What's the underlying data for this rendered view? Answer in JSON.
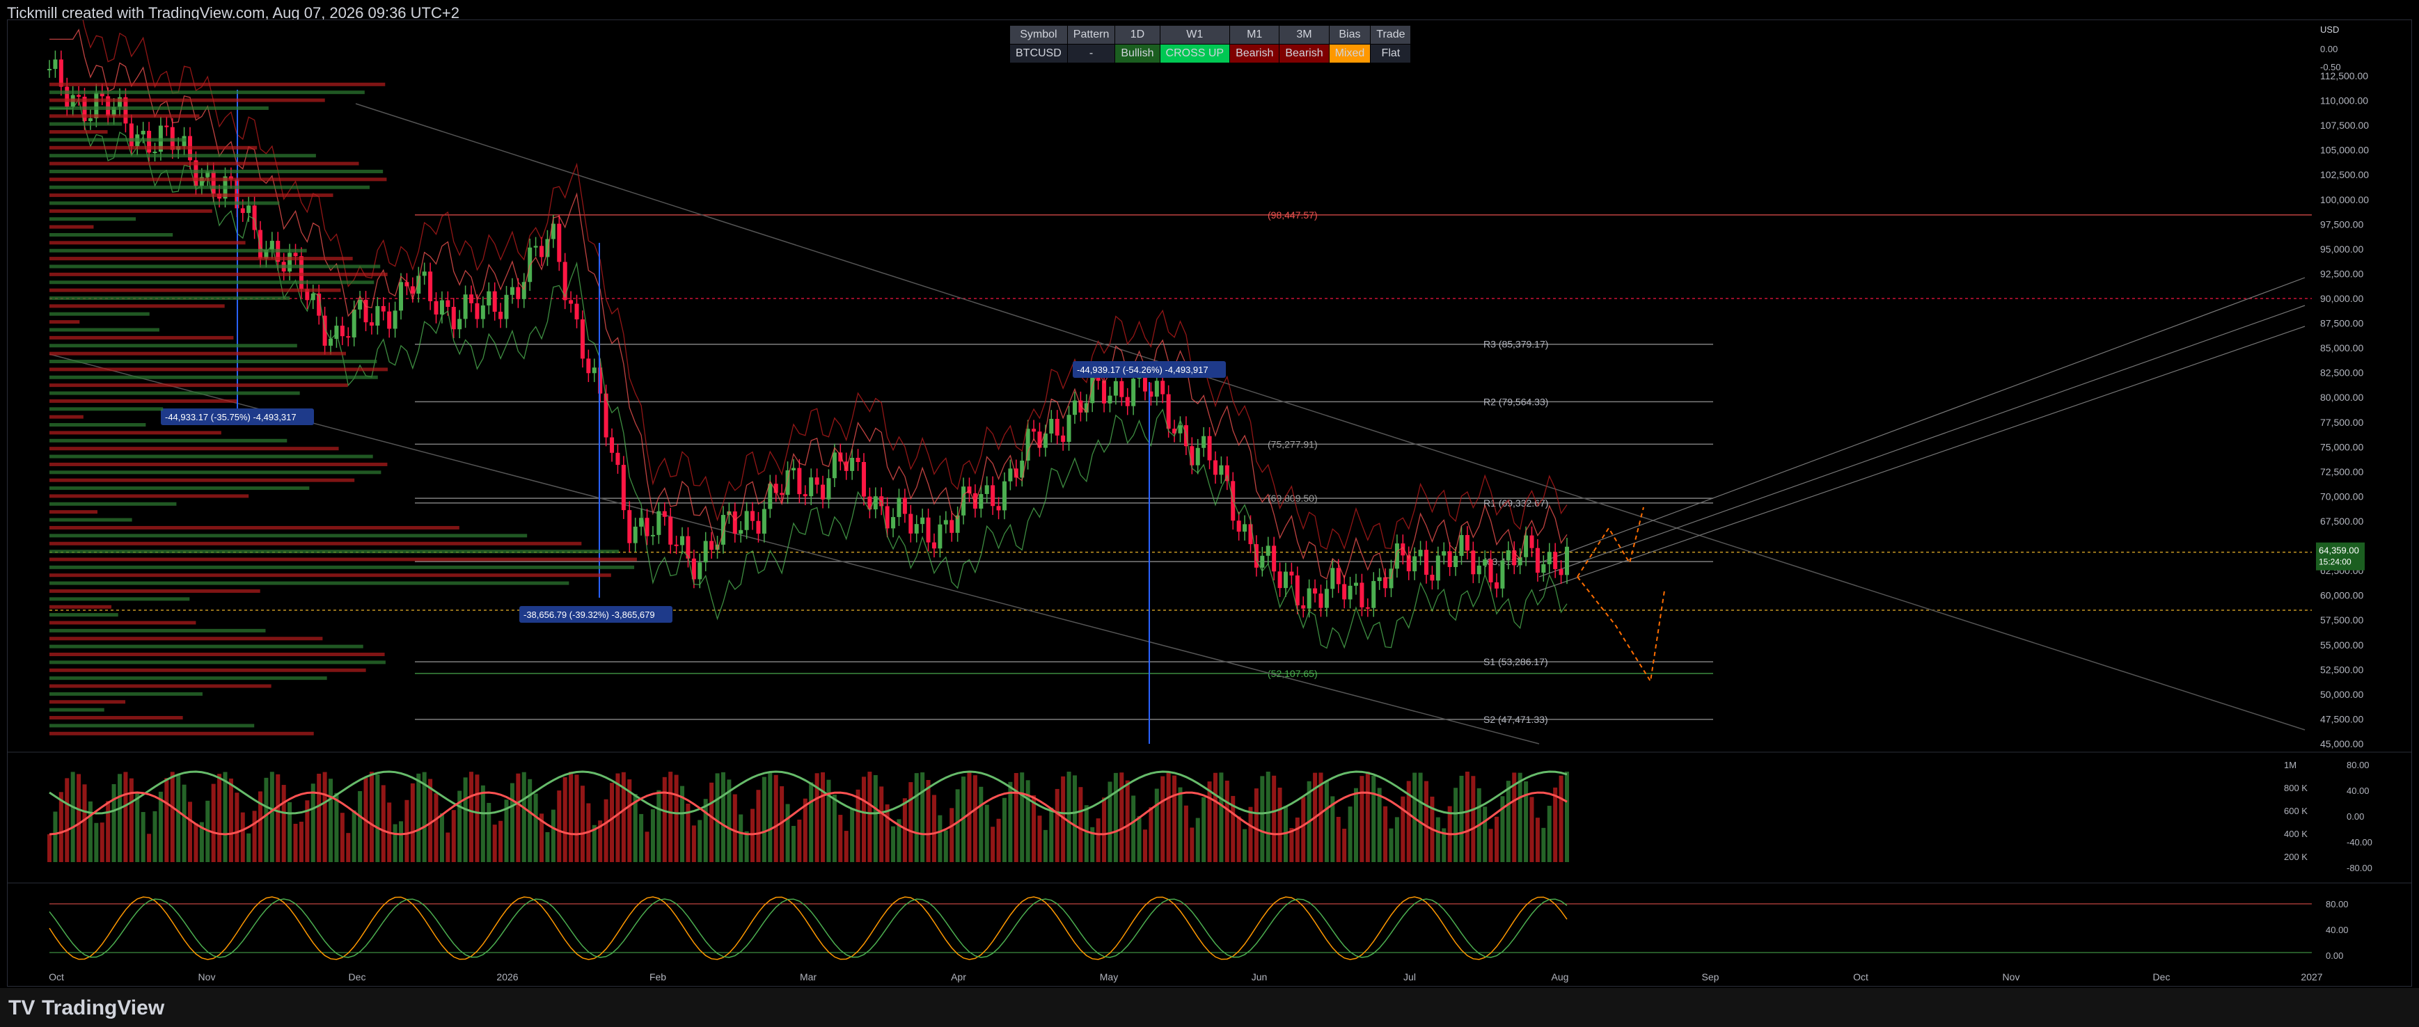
{
  "header": {
    "attribution": "Tickmill created with TradingView.com, Aug 07, 2026 09:36 UTC+2"
  },
  "status_table": {
    "headers": [
      "Symbol",
      "Pattern",
      "1D",
      "W1",
      "M1",
      "3M",
      "Bias",
      "Trade"
    ],
    "values": [
      "BTCUSD",
      "-",
      "Bullish",
      "CROSS UP",
      "Bearish",
      "Bearish",
      "Mixed",
      "Flat"
    ],
    "value_colors": [
      "#1e222d",
      "#1e222d",
      "#1b5e20",
      "#00c853",
      "#7f0000",
      "#7f0000",
      "#ff9800",
      "#1e222d"
    ]
  },
  "price_scale": {
    "currency": "USD",
    "top_values": [
      "0.00",
      "-0.50"
    ],
    "ticks": [
      "112,500.00",
      "110,000.00",
      "107,500.00",
      "105,000.00",
      "102,500.00",
      "100,000.00",
      "97,500.00",
      "95,000.00",
      "92,500.00",
      "90,000.00",
      "87,500.00",
      "85,000.00",
      "82,500.00",
      "80,000.00",
      "77,500.00",
      "75,000.00",
      "72,500.00",
      "70,000.00",
      "67,500.00",
      "65,000.00",
      "62,500.00",
      "60,000.00",
      "57,500.00",
      "55,000.00",
      "52,500.00",
      "50,000.00",
      "47,500.00",
      "45,000.00"
    ],
    "last_price": "64,359.00",
    "last_price_sub": "15:24:00"
  },
  "levels": {
    "r3": "R3 (85,379.17)",
    "r2": "R2 (79,564.33)",
    "r1": "R1 (69,332.67)",
    "s1": "S1 (53,286.17)",
    "s2": "S2 (47,471.33)",
    "fib_top": "(98,447.57)",
    "fib_mid": "(75,277.91)",
    "fib_mid2": "(69,809.50)",
    "fib_mid3": "(63,413)",
    "fib_bot": "(52,107.65)"
  },
  "measurements": [
    "-44,933.17 (-35.75%) -4,493,317",
    "-38,656.79 (-39.32%) -3,865,679",
    "-44,939.17 (-54.26%) -4,493,917"
  ],
  "volume_scale": [
    "1M",
    "800 K",
    "600 K",
    "400 K",
    "200 K"
  ],
  "oscillator_scale": [
    "80.00",
    "40.00",
    "0.00",
    "-40.00",
    "-80.00"
  ],
  "stoch_scale": [
    "80.00",
    "40.00",
    "0.00"
  ],
  "time_axis": [
    "Oct",
    "Nov",
    "Dec",
    "2026",
    "Feb",
    "Mar",
    "Apr",
    "May",
    "Jun",
    "Jul",
    "Aug",
    "Sep",
    "Oct",
    "Nov",
    "Dec",
    "2027"
  ],
  "footer": {
    "brand": "TradingView"
  },
  "colors": {
    "up": "#26a69a",
    "down": "#ef5350",
    "bull_candle": "#4caf50",
    "bear_candle": "#ff1744",
    "accent": "#2962ff",
    "support": "#f57f17"
  },
  "chart_data": {
    "type": "candlestick",
    "title": "",
    "xlabel": "",
    "ylabel": "",
    "ylim": [
      45000,
      112500
    ],
    "x": [
      "2025-10-01",
      "2025-10-15",
      "2025-11-01",
      "2025-11-15",
      "2025-12-01",
      "2025-12-15",
      "2026-01-01",
      "2026-01-15",
      "2026-02-01",
      "2026-02-15",
      "2026-03-01",
      "2026-03-15",
      "2026-04-01",
      "2026-04-15",
      "2026-05-01",
      "2026-05-15",
      "2026-06-01",
      "2026-06-15",
      "2026-07-01",
      "2026-07-15",
      "2026-08-01",
      "2026-08-07"
    ],
    "close": [
      112000,
      108000,
      104000,
      96000,
      86000,
      91000,
      88000,
      96000,
      68000,
      64000,
      70000,
      73000,
      66000,
      70000,
      78000,
      82000,
      74000,
      61000,
      60000,
      64000,
      63000,
      64359
    ],
    "horizontal_levels": [
      98447.57,
      90000,
      85379.17,
      79564.33,
      75277.91,
      69809.5,
      69332.67,
      64359,
      63413,
      58500,
      53286.17,
      52107.65,
      47471.33
    ]
  }
}
